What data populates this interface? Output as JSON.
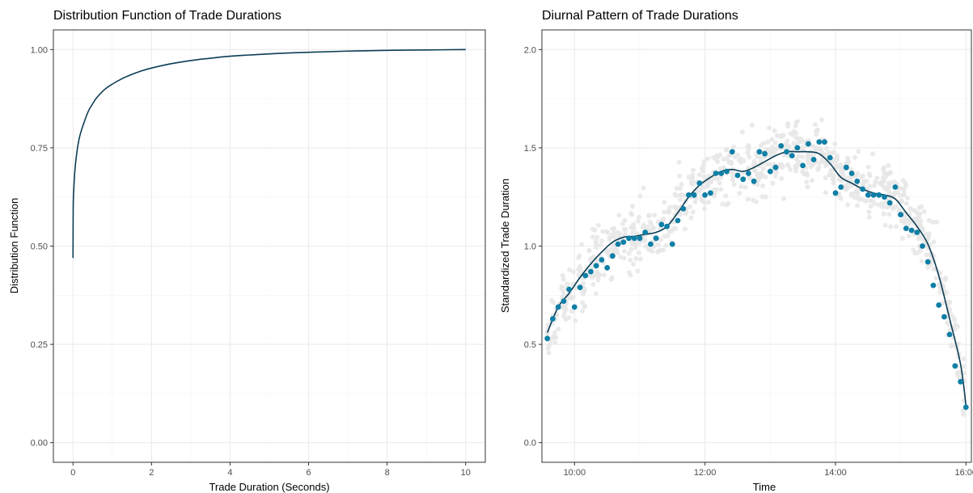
{
  "chart_data": [
    {
      "type": "line",
      "title": "Distribution Function of Trade Durations",
      "xlabel": "Trade Duration (Seconds)",
      "ylabel": "Distribution Function",
      "xlim": [
        -0.5,
        10.5
      ],
      "ylim": [
        -0.05,
        1.05
      ],
      "xticks": [
        0,
        2,
        4,
        6,
        8,
        10
      ],
      "xtick_labels": [
        "0",
        "2",
        "4",
        "6",
        "8",
        "10"
      ],
      "yticks": [
        0,
        0.25,
        0.5,
        0.75,
        1.0
      ],
      "ytick_labels": [
        "0.00",
        "0.25",
        "0.50",
        "0.75",
        "1.00"
      ],
      "grid": true,
      "line_color": "#0b3d55",
      "series": [
        {
          "x": [
            0,
            0.005,
            0.02,
            0.05,
            0.1,
            0.15,
            0.2,
            0.3,
            0.4,
            0.5,
            0.6,
            0.8,
            1.0,
            1.25,
            1.5,
            1.75,
            2.0,
            2.5,
            3.0,
            3.5,
            4.0,
            5.0,
            6.0,
            7.0,
            8.0,
            9.0,
            10.0
          ],
          "y": [
            0.47,
            0.6,
            0.645,
            0.695,
            0.74,
            0.77,
            0.79,
            0.82,
            0.845,
            0.862,
            0.877,
            0.898,
            0.912,
            0.926,
            0.937,
            0.946,
            0.953,
            0.964,
            0.972,
            0.978,
            0.983,
            0.989,
            0.993,
            0.996,
            0.998,
            0.999,
            1.0
          ]
        }
      ]
    },
    {
      "type": "scatter",
      "title": "Diurnal Pattern of Trade Durations",
      "xlabel": "Time",
      "ylabel": "Standardized Trade Duration",
      "xlim": [
        "09:30",
        "16:05"
      ],
      "ylim": [
        -0.1,
        2.1
      ],
      "xticks": [
        "10:00",
        "12:00",
        "14:00",
        "16:00"
      ],
      "xtick_labels": [
        "10:00",
        "12:00",
        "14:00",
        "16:00"
      ],
      "yticks": [
        0,
        0.5,
        1.0,
        1.5,
        2.0
      ],
      "ytick_labels": [
        "0.0",
        "0.5",
        "1.0",
        "1.5",
        "2.0"
      ],
      "grid": true,
      "colors": {
        "background_points": "#e6e6e6",
        "points": "#0e7fa6",
        "smooth": "#0b3d55"
      },
      "series": [
        {
          "kind": "points",
          "x": [
            "09:35",
            "09:40",
            "09:45",
            "09:50",
            "09:55",
            "10:00",
            "10:05",
            "10:10",
            "10:15",
            "10:20",
            "10:25",
            "10:30",
            "10:35",
            "10:40",
            "10:45",
            "10:50",
            "10:55",
            "11:00",
            "11:05",
            "11:10",
            "11:15",
            "11:20",
            "11:25",
            "11:30",
            "11:35",
            "11:40",
            "11:45",
            "11:50",
            "11:55",
            "12:00",
            "12:05",
            "12:10",
            "12:15",
            "12:20",
            "12:25",
            "12:30",
            "12:35",
            "12:40",
            "12:45",
            "12:50",
            "12:55",
            "13:00",
            "13:05",
            "13:10",
            "13:15",
            "13:20",
            "13:25",
            "13:30",
            "13:35",
            "13:40",
            "13:45",
            "13:50",
            "13:55",
            "14:00",
            "14:05",
            "14:10",
            "14:15",
            "14:20",
            "14:25",
            "14:30",
            "14:35",
            "14:40",
            "14:45",
            "14:50",
            "14:55",
            "15:00",
            "15:05",
            "15:10",
            "15:15",
            "15:20",
            "15:25",
            "15:30",
            "15:35",
            "15:40",
            "15:45",
            "15:50",
            "15:55",
            "16:00"
          ],
          "y": [
            0.53,
            0.63,
            0.69,
            0.72,
            0.78,
            0.69,
            0.79,
            0.85,
            0.87,
            0.9,
            0.93,
            0.89,
            0.95,
            1.01,
            1.02,
            1.04,
            1.04,
            1.04,
            1.07,
            1.01,
            1.04,
            1.11,
            1.1,
            1.01,
            1.13,
            1.19,
            1.26,
            1.26,
            1.32,
            1.26,
            1.27,
            1.37,
            1.37,
            1.38,
            1.48,
            1.36,
            1.34,
            1.37,
            1.33,
            1.48,
            1.47,
            1.38,
            1.4,
            1.51,
            1.48,
            1.46,
            1.5,
            1.41,
            1.52,
            1.44,
            1.53,
            1.53,
            1.45,
            1.27,
            1.3,
            1.4,
            1.37,
            1.33,
            1.29,
            1.26,
            1.26,
            1.26,
            1.25,
            1.22,
            1.3,
            1.16,
            1.09,
            1.08,
            1.07,
            1.0,
            0.92,
            0.8,
            0.7,
            0.64,
            0.55,
            0.39,
            0.31,
            0.18
          ]
        },
        {
          "kind": "smooth",
          "x": [
            "09:35",
            "09:45",
            "09:55",
            "10:05",
            "10:15",
            "10:25",
            "10:35",
            "10:45",
            "10:55",
            "11:05",
            "11:15",
            "11:25",
            "11:35",
            "11:45",
            "11:55",
            "12:05",
            "12:15",
            "12:25",
            "12:35",
            "12:45",
            "12:55",
            "13:05",
            "13:15",
            "13:25",
            "13:35",
            "13:45",
            "13:55",
            "14:05",
            "14:15",
            "14:25",
            "14:35",
            "14:45",
            "14:55",
            "15:05",
            "15:15",
            "15:25",
            "15:35",
            "15:45",
            "15:55",
            "16:00"
          ],
          "y": [
            0.56,
            0.69,
            0.76,
            0.84,
            0.91,
            0.97,
            1.02,
            1.045,
            1.05,
            1.06,
            1.07,
            1.1,
            1.17,
            1.25,
            1.31,
            1.35,
            1.38,
            1.39,
            1.38,
            1.4,
            1.43,
            1.46,
            1.48,
            1.48,
            1.48,
            1.47,
            1.42,
            1.35,
            1.32,
            1.29,
            1.27,
            1.26,
            1.24,
            1.17,
            1.1,
            1.01,
            0.85,
            0.63,
            0.4,
            0.19
          ]
        }
      ]
    }
  ]
}
